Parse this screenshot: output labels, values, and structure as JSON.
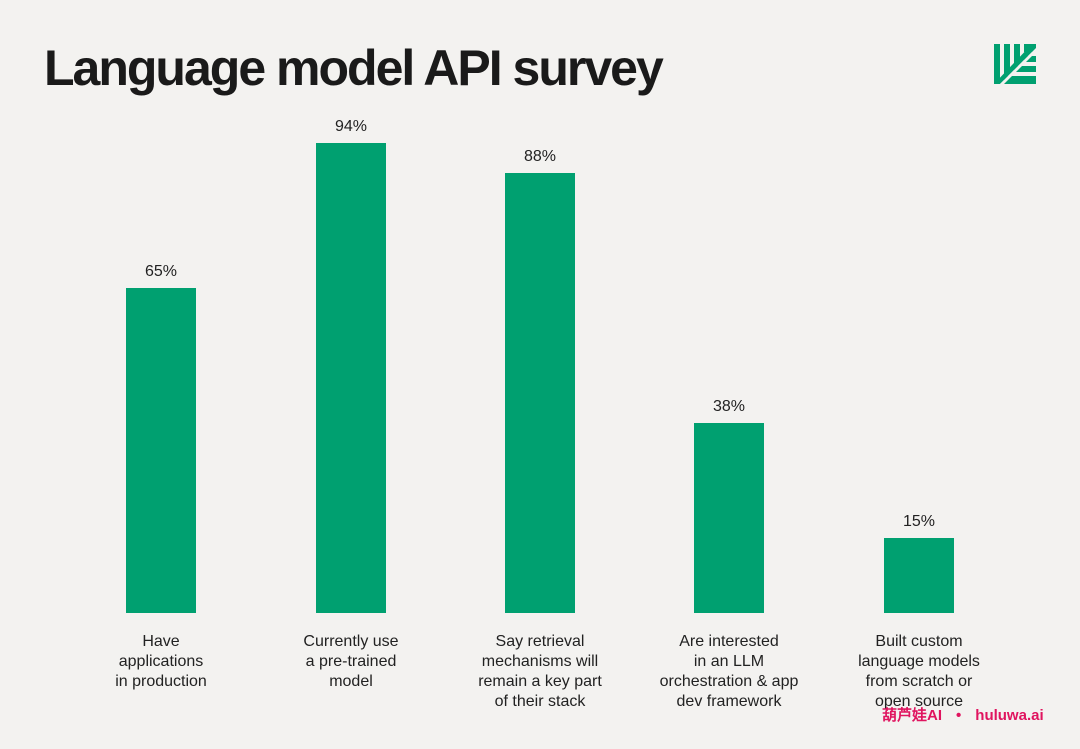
{
  "header": {
    "title": "Language model API survey",
    "logo_icon": "leaf-lines-logo-icon"
  },
  "colors": {
    "bar": "#00a070",
    "background": "#f3f2f0",
    "watermark": "#e0145f"
  },
  "watermark": {
    "brand": "葫芦娃AI",
    "separator": "•",
    "site": "huluwa.ai"
  },
  "chart_data": {
    "type": "bar",
    "title": "Language model API survey",
    "xlabel": "",
    "ylabel": "",
    "ylim": [
      0,
      100
    ],
    "grid": false,
    "categories": [
      "Have applications in production",
      "Currently use a pre-trained model",
      "Say retrieval mechanisms will remain a key part of their stack",
      "Are interested in an LLM orchestration & app dev framework",
      "Built custom language models from scratch or open source"
    ],
    "category_lines": [
      [
        "Have",
        "applications",
        "in production"
      ],
      [
        "Currently use",
        "a pre-trained",
        "model"
      ],
      [
        "Say retrieval",
        "mechanisms will",
        "remain a key part",
        "of their stack"
      ],
      [
        "Are interested",
        "in an LLM",
        "orchestration & app",
        "dev framework"
      ],
      [
        "Built custom",
        "language models",
        "from scratch or",
        "open source"
      ]
    ],
    "values": [
      65,
      94,
      88,
      38,
      15
    ],
    "labels": [
      "65%",
      "94%",
      "88%",
      "38%",
      "15%"
    ]
  }
}
